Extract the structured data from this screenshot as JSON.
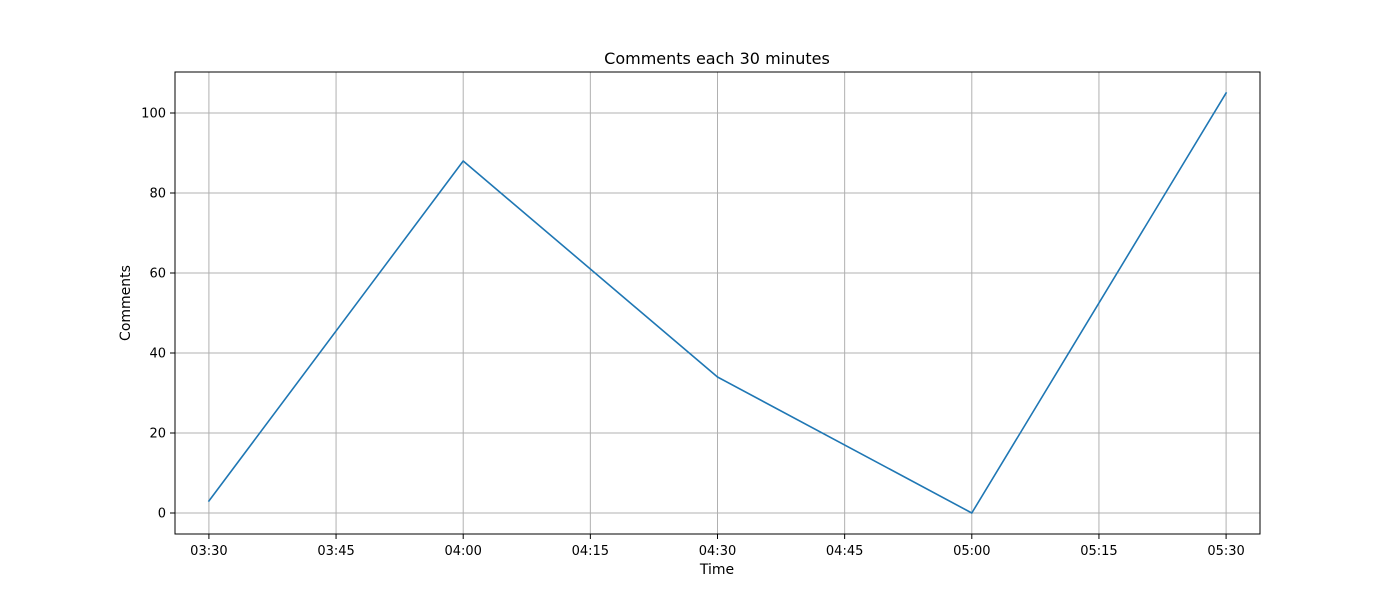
{
  "chart_data": {
    "type": "line",
    "title": "Comments each 30 minutes",
    "xlabel": "Time",
    "ylabel": "Comments",
    "x": [
      "03:30",
      "04:00",
      "04:30",
      "05:00",
      "05:30"
    ],
    "series": [
      {
        "values": [
          3,
          88,
          34,
          0,
          105
        ],
        "color": "#1f77b4"
      }
    ],
    "x_ticks": [
      "03:30",
      "03:45",
      "04:00",
      "04:15",
      "04:30",
      "04:45",
      "05:00",
      "05:15",
      "05:30"
    ],
    "y_ticks": [
      0,
      20,
      40,
      60,
      80,
      100
    ],
    "xlim": [
      "03:26",
      "05:34"
    ],
    "ylim": [
      -5.25,
      110.25
    ],
    "grid": true,
    "grid_color": "#b0b0b0",
    "legend": "none"
  }
}
